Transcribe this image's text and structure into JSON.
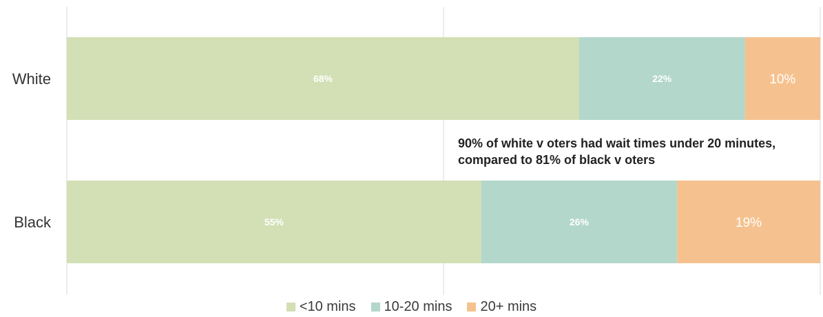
{
  "chart_data": {
    "type": "bar",
    "orientation": "horizontal",
    "stacked": true,
    "normalized_percent": true,
    "categories": [
      "White",
      "Black"
    ],
    "series": [
      {
        "name": "<10 mins",
        "values": [
          68,
          55
        ],
        "labels": [
          "68%",
          "55%"
        ],
        "color": "#d3dfb5"
      },
      {
        "name": "10-20 mins",
        "values": [
          22,
          26
        ],
        "labels": [
          "22%",
          "26%"
        ],
        "color": "#b3d7cb"
      },
      {
        "name": "20+ mins",
        "values": [
          10,
          19
        ],
        "labels": [
          "10%",
          "19%"
        ],
        "color": "#f5c28f"
      }
    ],
    "xlim": [
      0,
      100
    ],
    "grid": true,
    "legend_position": "bottom",
    "annotation": {
      "lines": [
        "90% of white v oters had wait times under 20 minutes,",
        "compared to 81% of black v oters"
      ]
    }
  }
}
